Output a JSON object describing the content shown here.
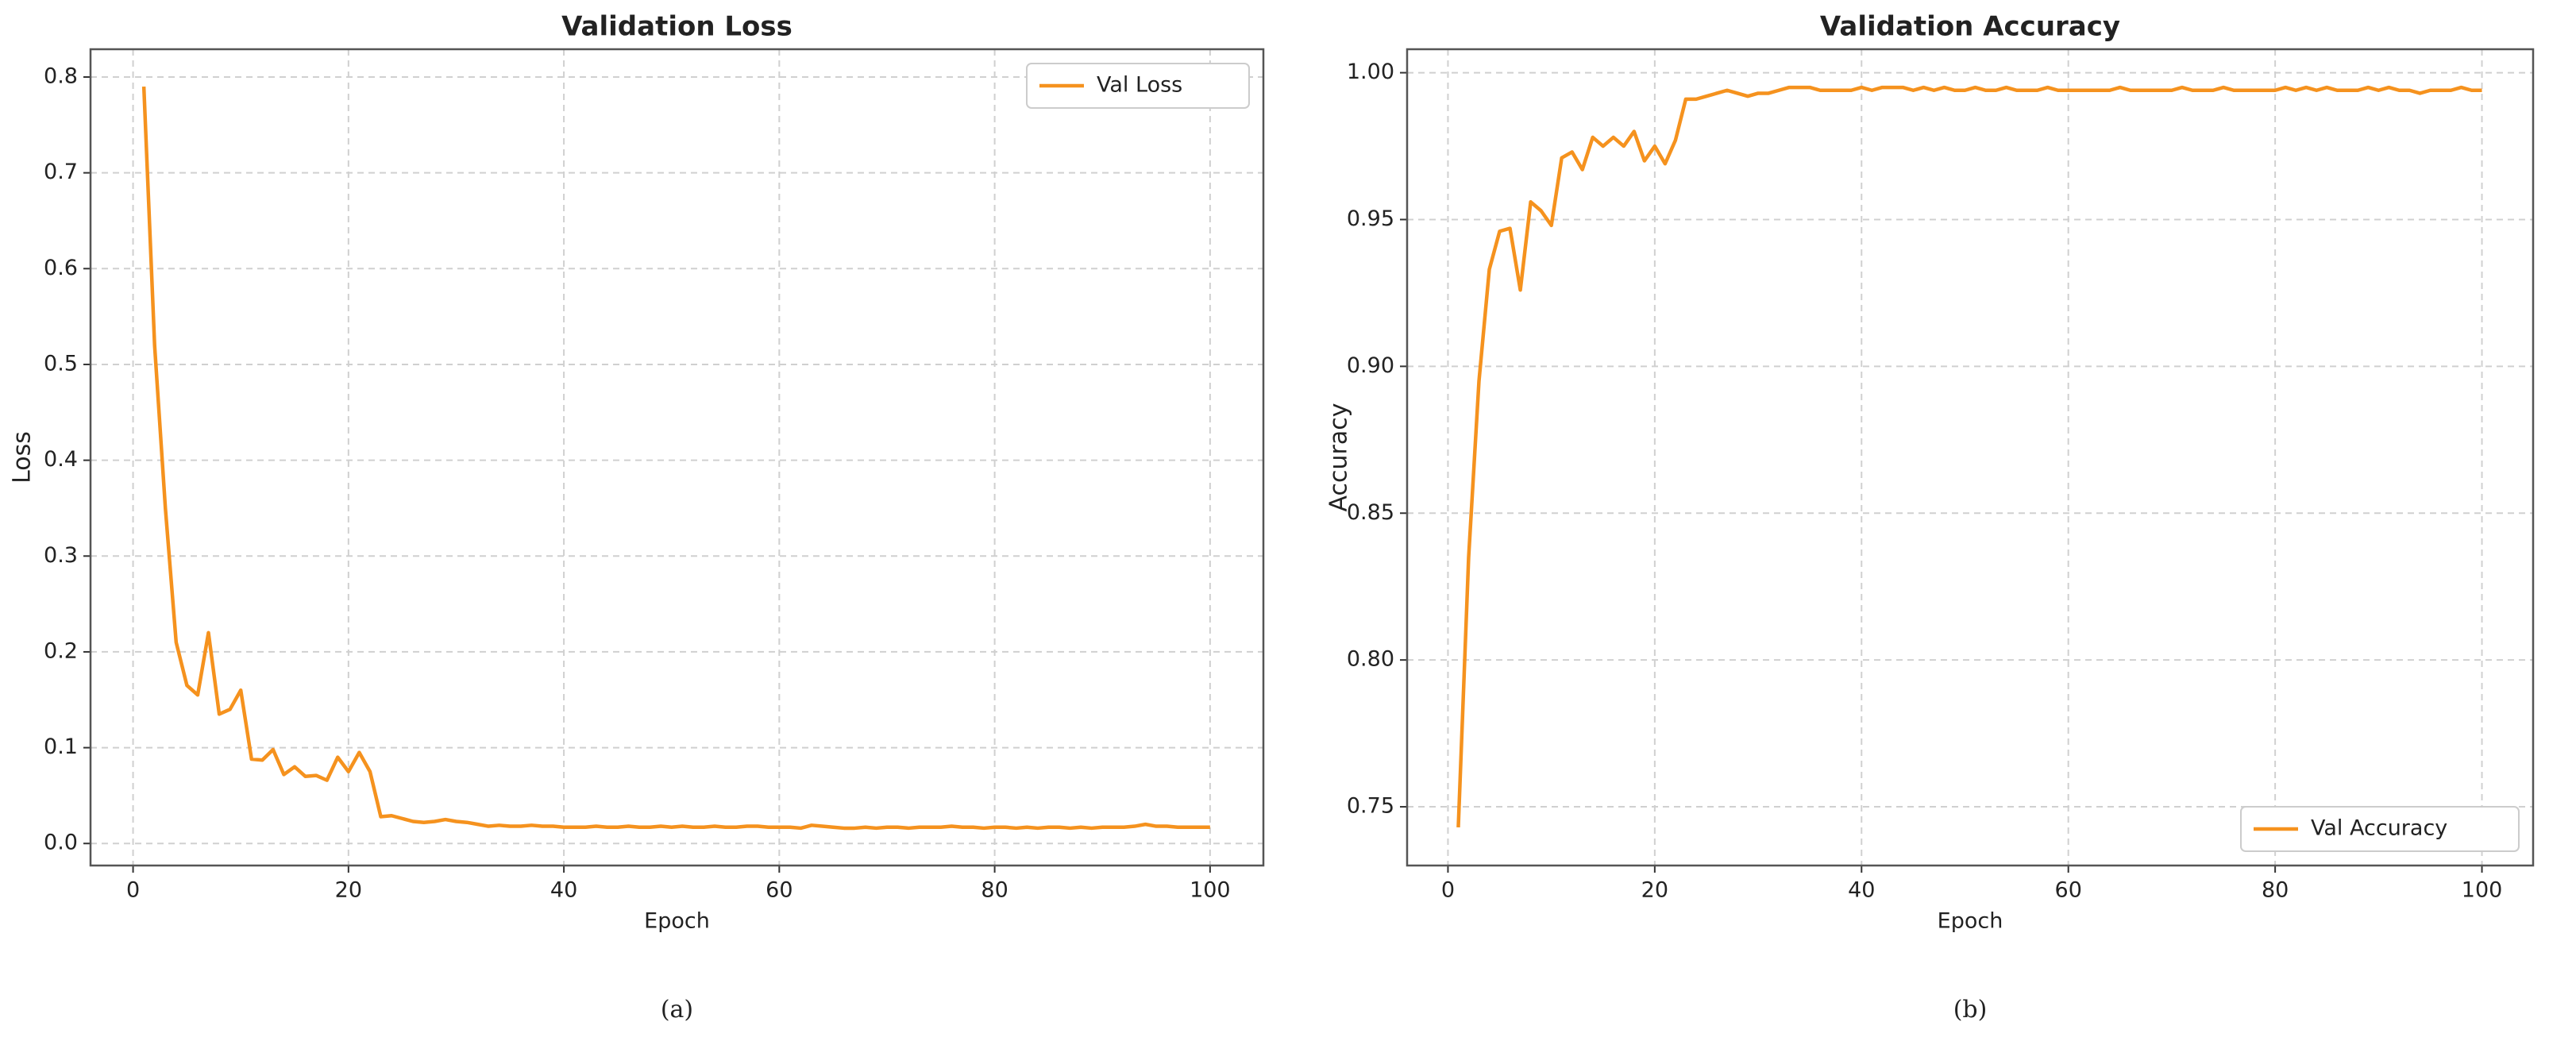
{
  "chart_data": [
    {
      "type": "line",
      "title": "Validation Loss",
      "xlabel": "Epoch",
      "ylabel": "Loss",
      "caption": "(a)",
      "x": [
        1,
        2,
        3,
        4,
        5,
        6,
        7,
        8,
        9,
        10,
        11,
        12,
        13,
        14,
        15,
        16,
        17,
        18,
        19,
        20,
        21,
        22,
        23,
        24,
        25,
        26,
        27,
        28,
        29,
        30,
        31,
        32,
        33,
        34,
        35,
        36,
        37,
        38,
        39,
        40,
        41,
        42,
        43,
        44,
        45,
        46,
        47,
        48,
        49,
        50,
        51,
        52,
        53,
        54,
        55,
        56,
        57,
        58,
        59,
        60,
        61,
        62,
        63,
        64,
        65,
        66,
        67,
        68,
        69,
        70,
        71,
        72,
        73,
        74,
        75,
        76,
        77,
        78,
        79,
        80,
        81,
        82,
        83,
        84,
        85,
        86,
        87,
        88,
        89,
        90,
        91,
        92,
        93,
        94,
        95,
        96,
        97,
        98,
        99,
        100
      ],
      "series": [
        {
          "name": "Val Loss",
          "color": "#f5921e",
          "values": [
            0.79,
            0.52,
            0.35,
            0.21,
            0.165,
            0.155,
            0.22,
            0.135,
            0.14,
            0.16,
            0.088,
            0.087,
            0.098,
            0.072,
            0.08,
            0.07,
            0.071,
            0.066,
            0.09,
            0.075,
            0.095,
            0.075,
            0.028,
            0.029,
            0.026,
            0.023,
            0.022,
            0.023,
            0.025,
            0.023,
            0.022,
            0.02,
            0.018,
            0.019,
            0.018,
            0.018,
            0.019,
            0.018,
            0.018,
            0.017,
            0.017,
            0.017,
            0.018,
            0.017,
            0.017,
            0.018,
            0.017,
            0.017,
            0.018,
            0.017,
            0.018,
            0.017,
            0.017,
            0.018,
            0.017,
            0.017,
            0.018,
            0.018,
            0.017,
            0.017,
            0.017,
            0.016,
            0.019,
            0.018,
            0.017,
            0.016,
            0.016,
            0.017,
            0.016,
            0.017,
            0.017,
            0.016,
            0.017,
            0.017,
            0.017,
            0.018,
            0.017,
            0.017,
            0.016,
            0.017,
            0.017,
            0.016,
            0.017,
            0.016,
            0.017,
            0.017,
            0.016,
            0.017,
            0.016,
            0.017,
            0.017,
            0.017,
            0.018,
            0.02,
            0.018,
            0.018,
            0.017,
            0.017,
            0.017,
            0.017
          ]
        }
      ],
      "xlim": [
        -3.95,
        104.95
      ],
      "xticks": [
        0,
        20,
        40,
        60,
        80,
        100
      ],
      "ylim": [
        -0.023,
        0.829
      ],
      "yticks": [
        {
          "value": 0,
          "label": "0.0"
        },
        0.1,
        0.2,
        0.3,
        0.4,
        0.5,
        0.6,
        0.7,
        0.8
      ],
      "grid": true,
      "legend": "upper-right"
    },
    {
      "type": "line",
      "title": "Validation Accuracy",
      "xlabel": "Epoch",
      "ylabel": "Accuracy",
      "caption": "(b)",
      "x": [
        1,
        2,
        3,
        4,
        5,
        6,
        7,
        8,
        9,
        10,
        11,
        12,
        13,
        14,
        15,
        16,
        17,
        18,
        19,
        20,
        21,
        22,
        23,
        24,
        25,
        26,
        27,
        28,
        29,
        30,
        31,
        32,
        33,
        34,
        35,
        36,
        37,
        38,
        39,
        40,
        41,
        42,
        43,
        44,
        45,
        46,
        47,
        48,
        49,
        50,
        51,
        52,
        53,
        54,
        55,
        56,
        57,
        58,
        59,
        60,
        61,
        62,
        63,
        64,
        65,
        66,
        67,
        68,
        69,
        70,
        71,
        72,
        73,
        74,
        75,
        76,
        77,
        78,
        79,
        80,
        81,
        82,
        83,
        84,
        85,
        86,
        87,
        88,
        89,
        90,
        91,
        92,
        93,
        94,
        95,
        96,
        97,
        98,
        99,
        100
      ],
      "series": [
        {
          "name": "Val Accuracy",
          "color": "#f5921e",
          "values": [
            0.743,
            0.835,
            0.895,
            0.933,
            0.946,
            0.947,
            0.926,
            0.956,
            0.953,
            0.948,
            0.971,
            0.973,
            0.967,
            0.978,
            0.975,
            0.978,
            0.975,
            0.98,
            0.97,
            0.975,
            0.969,
            0.977,
            0.991,
            0.991,
            0.992,
            0.993,
            0.994,
            0.993,
            0.992,
            0.993,
            0.993,
            0.994,
            0.995,
            0.995,
            0.995,
            0.994,
            0.994,
            0.994,
            0.994,
            0.995,
            0.994,
            0.995,
            0.995,
            0.995,
            0.994,
            0.995,
            0.994,
            0.995,
            0.994,
            0.994,
            0.995,
            0.994,
            0.994,
            0.995,
            0.994,
            0.994,
            0.994,
            0.995,
            0.994,
            0.994,
            0.994,
            0.994,
            0.994,
            0.994,
            0.995,
            0.994,
            0.994,
            0.994,
            0.994,
            0.994,
            0.995,
            0.994,
            0.994,
            0.994,
            0.995,
            0.994,
            0.994,
            0.994,
            0.994,
            0.994,
            0.995,
            0.994,
            0.995,
            0.994,
            0.995,
            0.994,
            0.994,
            0.994,
            0.995,
            0.994,
            0.995,
            0.994,
            0.994,
            0.993,
            0.994,
            0.994,
            0.994,
            0.995,
            0.994,
            0.994
          ]
        }
      ],
      "xlim": [
        -3.95,
        104.95
      ],
      "xticks": [
        0,
        20,
        40,
        60,
        80,
        100
      ],
      "ylim": [
        0.73,
        1.008
      ],
      "yticks": [
        0.75,
        {
          "value": 0.8,
          "label": "0.80"
        },
        0.85,
        {
          "value": 0.9,
          "label": "0.90"
        },
        0.95,
        {
          "value": 1,
          "label": "1.00"
        }
      ],
      "grid": true,
      "legend": "lower-right"
    }
  ]
}
